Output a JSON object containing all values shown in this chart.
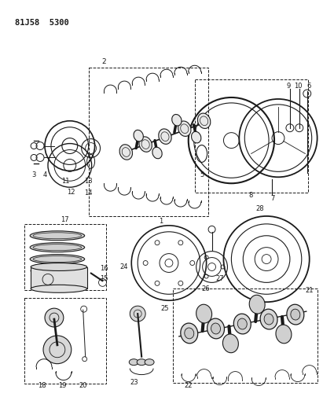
{
  "title": "81J58 5300",
  "bg_color": "#ffffff",
  "line_color": "#1a1a1a",
  "fig_w": 4.11,
  "fig_h": 5.33,
  "dpi": 100
}
